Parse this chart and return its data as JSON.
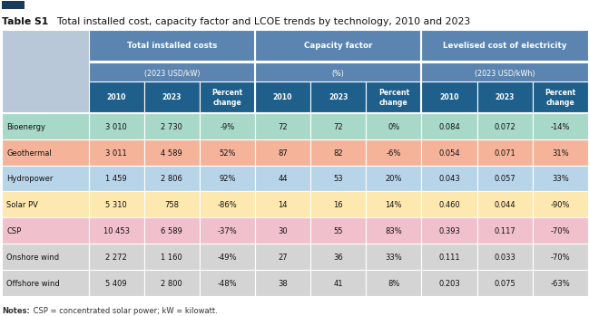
{
  "title_bold": "Table S1",
  "title_rest": "  Total installed cost, capacity factor and LCOE trends by technology, 2010 and 2023",
  "header1_bg": "#5b84b0",
  "header2_bg": "#1f5f8b",
  "header_label_bg": "#b8c8d8",
  "group_headers": [
    "Total installed costs",
    "Capacity factor",
    "Levelised cost of electricity"
  ],
  "sub_headers": [
    "(2023 USD/kW)",
    "(%)",
    "(2023 USD/kWh)"
  ],
  "row_labels": [
    "Bioenergy",
    "Geothermal",
    "Hydropower",
    "Solar PV",
    "CSP",
    "Onshore wind",
    "Offshore wind"
  ],
  "row_colors": [
    "#a8d8c8",
    "#f5b49a",
    "#b8d4e8",
    "#fde8b0",
    "#f0c0cc",
    "#d4d4d4",
    "#d4d4d4"
  ],
  "data": [
    [
      "3 010",
      "2 730",
      "-9%",
      "72",
      "72",
      "0%",
      "0.084",
      "0.072",
      "-14%"
    ],
    [
      "3 011",
      "4 589",
      "52%",
      "87",
      "82",
      "-6%",
      "0.054",
      "0.071",
      "31%"
    ],
    [
      "1 459",
      "2 806",
      "92%",
      "44",
      "53",
      "20%",
      "0.043",
      "0.057",
      "33%"
    ],
    [
      "5 310",
      "758",
      "-86%",
      "14",
      "16",
      "14%",
      "0.460",
      "0.044",
      "-90%"
    ],
    [
      "10 453",
      "6 589",
      "-37%",
      "30",
      "55",
      "83%",
      "0.393",
      "0.117",
      "-70%"
    ],
    [
      "2 272",
      "1 160",
      "-49%",
      "27",
      "36",
      "33%",
      "0.111",
      "0.033",
      "-70%"
    ],
    [
      "5 409",
      "2 800",
      "-48%",
      "38",
      "41",
      "8%",
      "0.203",
      "0.075",
      "-63%"
    ]
  ],
  "notes_bold": "Notes:",
  "notes_rest": " CSP = concentrated solar power; kW = kilowatt.",
  "fig_bg": "#ffffff",
  "top_bar_color": "#1a3a5c",
  "border_color": "#ffffff"
}
